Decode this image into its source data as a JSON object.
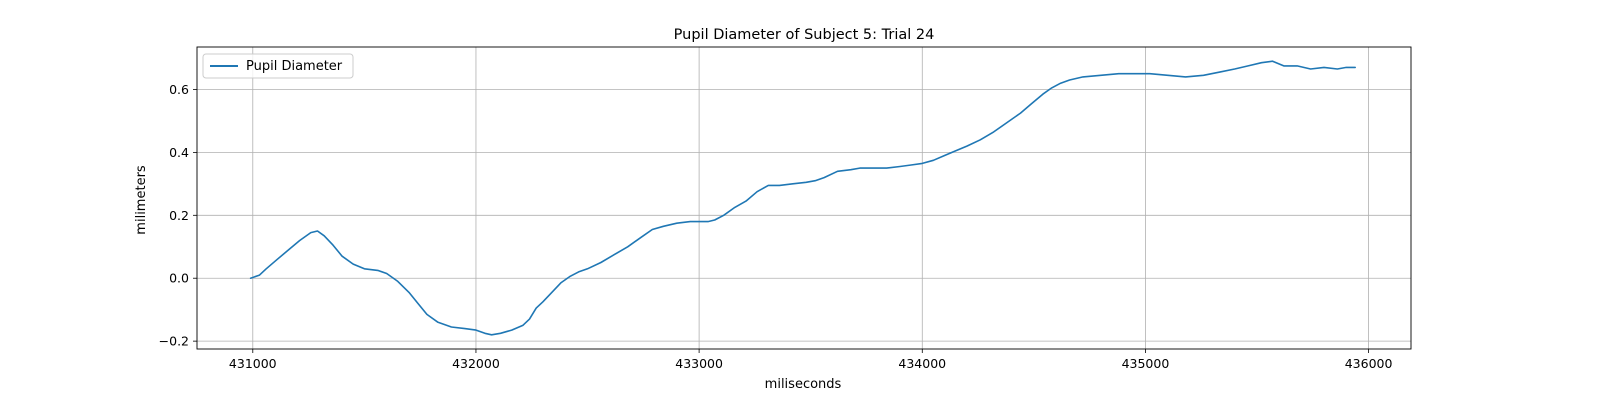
{
  "chart_data": {
    "type": "line",
    "title": "Pupil Diameter of Subject 5: Trial 24",
    "xlabel": "miliseconds",
    "ylabel": "milimeters",
    "xlim": [
      430750,
      436190
    ],
    "ylim": [
      -0.225,
      0.735
    ],
    "xticks": [
      431000,
      432000,
      433000,
      434000,
      435000,
      436000
    ],
    "yticks": [
      -0.2,
      0.0,
      0.2,
      0.4,
      0.6
    ],
    "ytick_labels": [
      "−0.2",
      "0.0",
      "0.2",
      "0.4",
      "0.6"
    ],
    "grid": true,
    "legend": {
      "placement": "top-left",
      "entries": [
        "Pupil Diameter"
      ]
    },
    "series": [
      {
        "name": "Pupil Diameter",
        "color": "#1f77b4",
        "x": [
          430990,
          431030,
          431060,
          431110,
          431160,
          431210,
          431260,
          431290,
          431320,
          431360,
          431400,
          431450,
          431500,
          431560,
          431600,
          431650,
          431700,
          431740,
          431780,
          431830,
          431890,
          431950,
          432000,
          432040,
          432070,
          432110,
          432160,
          432210,
          432240,
          432270,
          432300,
          432340,
          432380,
          432420,
          432460,
          432500,
          432560,
          432620,
          432680,
          432740,
          432790,
          432840,
          432900,
          432960,
          433000,
          433040,
          433070,
          433110,
          433160,
          433210,
          433260,
          433310,
          433360,
          433420,
          433480,
          433520,
          433560,
          433620,
          433680,
          433720,
          433780,
          433840,
          433900,
          433950,
          434000,
          434050,
          434100,
          434150,
          434200,
          434260,
          434320,
          434380,
          434440,
          434490,
          434540,
          434580,
          434620,
          434660,
          434720,
          434800,
          434880,
          434950,
          435020,
          435100,
          435180,
          435260,
          435330,
          435400,
          435460,
          435520,
          435570,
          435620,
          435680,
          435740,
          435800,
          435860,
          435900,
          435940
        ],
        "y": [
          0.0,
          0.01,
          0.03,
          0.06,
          0.09,
          0.12,
          0.145,
          0.15,
          0.135,
          0.105,
          0.07,
          0.045,
          0.03,
          0.025,
          0.015,
          -0.01,
          -0.045,
          -0.08,
          -0.115,
          -0.14,
          -0.155,
          -0.16,
          -0.165,
          -0.175,
          -0.18,
          -0.175,
          -0.165,
          -0.15,
          -0.13,
          -0.095,
          -0.075,
          -0.045,
          -0.015,
          0.005,
          0.02,
          0.03,
          0.05,
          0.075,
          0.1,
          0.13,
          0.155,
          0.165,
          0.175,
          0.18,
          0.18,
          0.18,
          0.185,
          0.2,
          0.225,
          0.245,
          0.275,
          0.295,
          0.295,
          0.3,
          0.305,
          0.31,
          0.32,
          0.34,
          0.345,
          0.35,
          0.35,
          0.35,
          0.355,
          0.36,
          0.365,
          0.375,
          0.39,
          0.405,
          0.42,
          0.44,
          0.465,
          0.495,
          0.525,
          0.555,
          0.585,
          0.605,
          0.62,
          0.63,
          0.64,
          0.645,
          0.65,
          0.65,
          0.65,
          0.645,
          0.64,
          0.645,
          0.655,
          0.665,
          0.675,
          0.685,
          0.69,
          0.675,
          0.675,
          0.665,
          0.67,
          0.665,
          0.67,
          0.67
        ]
      }
    ]
  }
}
